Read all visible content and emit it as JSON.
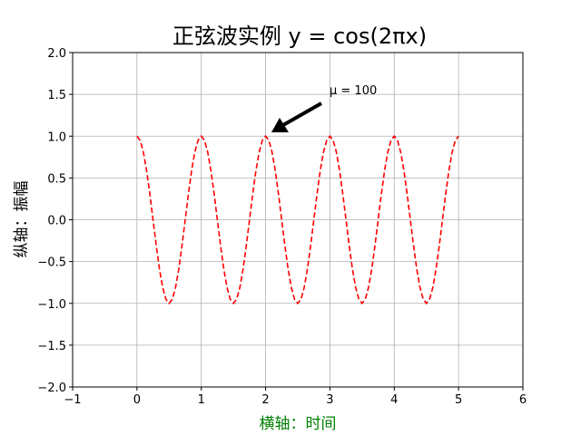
{
  "chart_data": {
    "type": "line",
    "title": "正弦波实例 y = cos(2πx)",
    "x_label": "横轴：时间",
    "y_label": "纵轴：振幅",
    "x_label_color": "#008000",
    "annotation": "μ = 100",
    "x": [
      0,
      0.05,
      0.1,
      0.15,
      0.2,
      0.25,
      0.3,
      0.35,
      0.4,
      0.45,
      0.5,
      0.55,
      0.6,
      0.65,
      0.7,
      0.75,
      0.8,
      0.85,
      0.9,
      0.95,
      1,
      1.05,
      1.1,
      1.15,
      1.2,
      1.25,
      1.3,
      1.35,
      1.4,
      1.45,
      1.5,
      1.55,
      1.6,
      1.65,
      1.7,
      1.75,
      1.8,
      1.85,
      1.9,
      1.95,
      2,
      2.05,
      2.1,
      2.15,
      2.2,
      2.25,
      2.3,
      2.35,
      2.4,
      2.45,
      2.5,
      2.55,
      2.6,
      2.65,
      2.7,
      2.75,
      2.8,
      2.85,
      2.9,
      2.95,
      3,
      3.05,
      3.1,
      3.15,
      3.2,
      3.25,
      3.3,
      3.35,
      3.4,
      3.45,
      3.5,
      3.55,
      3.6,
      3.65,
      3.7,
      3.75,
      3.8,
      3.85,
      3.9,
      3.95,
      4,
      4.05,
      4.1,
      4.15,
      4.2,
      4.25,
      4.3,
      4.35,
      4.4,
      4.45,
      4.5,
      4.55,
      4.6,
      4.65,
      4.7,
      4.75,
      4.8,
      4.85,
      4.9,
      4.95,
      5
    ],
    "series": [
      {
        "color": "#ff0000",
        "linestyle": "dashed",
        "values": [
          1,
          0.95,
          0.81,
          0.59,
          0.31,
          0,
          -0.31,
          -0.59,
          -0.81,
          -0.95,
          -1,
          -0.95,
          -0.81,
          -0.59,
          -0.31,
          0,
          0.31,
          0.59,
          0.81,
          0.95,
          1,
          0.95,
          0.81,
          0.59,
          0.31,
          0,
          -0.31,
          -0.59,
          -0.81,
          -0.95,
          -1,
          -0.95,
          -0.81,
          -0.59,
          -0.31,
          0,
          0.31,
          0.59,
          0.81,
          0.95,
          1,
          0.95,
          0.81,
          0.59,
          0.31,
          0,
          -0.31,
          -0.59,
          -0.81,
          -0.95,
          -1,
          -0.95,
          -0.81,
          -0.59,
          -0.31,
          0,
          0.31,
          0.59,
          0.81,
          0.95,
          1,
          0.95,
          0.81,
          0.59,
          0.31,
          0,
          -0.31,
          -0.59,
          -0.81,
          -0.95,
          -1,
          -0.95,
          -0.81,
          -0.59,
          -0.31,
          0,
          0.31,
          0.59,
          0.81,
          0.95,
          1,
          0.95,
          0.81,
          0.59,
          0.31,
          0,
          -0.31,
          -0.59,
          -0.81,
          -0.95,
          -1,
          -0.95,
          -0.81,
          -0.59,
          -0.31,
          0,
          0.31,
          0.59,
          0.81,
          0.95,
          1
        ]
      }
    ],
    "xlim": [
      -1,
      6
    ],
    "ylim": [
      -2,
      2
    ],
    "xticks": [
      {
        "value": -1,
        "label": "−1"
      },
      0,
      1,
      2,
      3,
      4,
      5,
      6
    ],
    "yticks": [
      {
        "value": -2,
        "label": "−2.0"
      },
      {
        "value": -1.5,
        "label": "−1.5"
      },
      {
        "value": -1,
        "label": "−1.0"
      },
      {
        "value": -0.5,
        "label": "−0.5"
      },
      {
        "value": 0,
        "label": "0.0"
      },
      {
        "value": 0.5,
        "label": "0.5"
      },
      {
        "value": 1,
        "label": "1.0"
      },
      {
        "value": 1.5,
        "label": "1.5"
      },
      {
        "value": 2,
        "label": "2.0"
      }
    ],
    "grid": true
  }
}
